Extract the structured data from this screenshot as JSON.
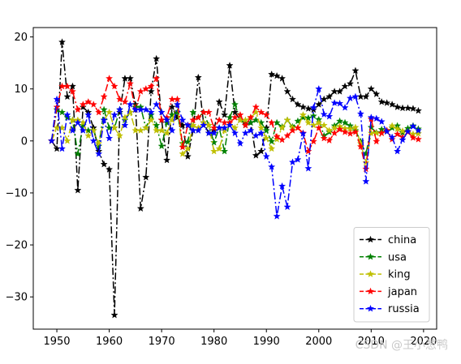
{
  "chart_data": {
    "type": "line",
    "xlim": [
      1945.5,
      2022.5
    ],
    "ylim": [
      -36.2,
      21.8
    ],
    "xticks": [
      1950,
      1960,
      1970,
      1980,
      1990,
      2000,
      2010,
      2020
    ],
    "yticks": [
      -30,
      -20,
      -10,
      0,
      10,
      20
    ],
    "legend_position": "lower-right",
    "x": [
      1949,
      1950,
      1951,
      1952,
      1953,
      1954,
      1955,
      1956,
      1957,
      1958,
      1959,
      1960,
      1961,
      1962,
      1963,
      1964,
      1965,
      1966,
      1967,
      1968,
      1969,
      1970,
      1971,
      1972,
      1973,
      1974,
      1975,
      1976,
      1977,
      1978,
      1979,
      1980,
      1981,
      1982,
      1983,
      1984,
      1985,
      1986,
      1987,
      1988,
      1989,
      1990,
      1991,
      1992,
      1993,
      1994,
      1995,
      1996,
      1997,
      1998,
      1999,
      2000,
      2001,
      2002,
      2003,
      2004,
      2005,
      2006,
      2007,
      2008,
      2009,
      2010,
      2011,
      2012,
      2013,
      2014,
      2015,
      2016,
      2017,
      2018,
      2019
    ],
    "series": [
      {
        "name": "china",
        "color": "#000000",
        "values": [
          0,
          -1.5,
          19,
          8.5,
          10.5,
          -9.5,
          6.5,
          5.5,
          2.5,
          -2,
          -4.5,
          -5.5,
          -33.5,
          5.5,
          12,
          12,
          7,
          -13,
          -7,
          9.5,
          15.8,
          4,
          -3.7,
          6.5,
          4.5,
          3,
          -3,
          2,
          12.2,
          3.5,
          1.5,
          2,
          7.5,
          5,
          14.5,
          5.5,
          4,
          3,
          3.5,
          -2.8,
          -2,
          2.5,
          12.8,
          12.5,
          12,
          9.5,
          8,
          7,
          6.5,
          6.2,
          6,
          7,
          8,
          8.5,
          9.5,
          9.5,
          10.5,
          11,
          13.5,
          8.5,
          8.5,
          10,
          9,
          7.5,
          7.3,
          7,
          6.5,
          6.3,
          6.3,
          6.2,
          5.8
        ]
      },
      {
        "name": "usa",
        "color": "#008000",
        "values": [
          0,
          6,
          5.5,
          4.5,
          4,
          -2.5,
          3,
          2,
          2,
          -1,
          6,
          2.5,
          2.5,
          6,
          4,
          5.5,
          6.5,
          6.5,
          2.5,
          5,
          3,
          -1,
          3.5,
          5,
          5.5,
          -0.5,
          -0.2,
          5.5,
          4.5,
          5.5,
          3,
          -0.3,
          2.5,
          -2,
          4.5,
          7,
          4,
          3.5,
          3.5,
          4,
          3.5,
          2,
          -0.1,
          3.5,
          2.7,
          4,
          2.7,
          3.8,
          4.5,
          4.4,
          4.8,
          4.1,
          1,
          1.7,
          2.9,
          3.8,
          3.5,
          2.9,
          2,
          -0.1,
          -2.5,
          2.6,
          1.6,
          2.2,
          1.8,
          2.5,
          2.9,
          1.6,
          2.4,
          2.9,
          2.3
        ]
      },
      {
        "name": "king",
        "color": "#bfbf00",
        "values": [
          0,
          2.5,
          2.5,
          0,
          4,
          4,
          3.5,
          1,
          2,
          -0.5,
          4,
          5.5,
          2.5,
          1,
          4.5,
          5.5,
          2,
          2,
          2.5,
          4,
          2,
          2,
          1.5,
          4,
          7,
          -2.5,
          -1.5,
          3,
          2.5,
          3.5,
          3,
          -2,
          -1.5,
          2,
          3.5,
          2.5,
          4,
          4,
          4.5,
          5.5,
          2.5,
          0.5,
          -1.5,
          0.3,
          2.5,
          4,
          2.5,
          2.5,
          5,
          3.5,
          3,
          3.5,
          3,
          2,
          2.5,
          2.8,
          2.4,
          2.3,
          2.6,
          -0.5,
          -4.2,
          1.5,
          1.5,
          1.5,
          2,
          2.9,
          2.3,
          1.9,
          1.8,
          1.3,
          1.4
        ]
      },
      {
        "name": "japan",
        "color": "#ff0000",
        "values": [
          0,
          6.5,
          10.5,
          10.5,
          9.5,
          6,
          7,
          7.5,
          7,
          5.5,
          8.5,
          12,
          10.5,
          8,
          7.5,
          11,
          6,
          9.5,
          10,
          10.5,
          12,
          4,
          4.5,
          8,
          8,
          -1.2,
          3,
          4,
          4.5,
          5.5,
          5.5,
          2.5,
          4,
          3.5,
          3.5,
          4.5,
          5,
          3,
          4.5,
          6.5,
          5.5,
          5,
          3.5,
          0.8,
          0.2,
          1,
          2,
          2.5,
          1.5,
          -2,
          -0.1,
          2.5,
          0.5,
          0.1,
          1.5,
          2.2,
          1.7,
          1.4,
          1.7,
          -1.1,
          -5.4,
          4.2,
          -0.1,
          1.5,
          2,
          0.3,
          1.3,
          0.7,
          1.7,
          0.6,
          0.3
        ]
      },
      {
        "name": "russia",
        "color": "#0000ff",
        "values": [
          0,
          8,
          -1.5,
          5,
          2,
          3.5,
          2,
          5,
          0,
          -2.5,
          4,
          0.5,
          5,
          6,
          3,
          7,
          6,
          6,
          6,
          5.5,
          7,
          5.5,
          4,
          2,
          7,
          4,
          3,
          2,
          2,
          3,
          1.5,
          1.5,
          2.5,
          2.5,
          3,
          1.5,
          -0.5,
          1.5,
          2,
          1,
          1.5,
          -3,
          -5,
          -14.5,
          -8.7,
          -12.7,
          -4.1,
          -3.6,
          1.4,
          -5.3,
          6.4,
          10,
          5.1,
          4.7,
          7.3,
          7.2,
          6.4,
          8.2,
          8.5,
          5.2,
          -7.8,
          4.5,
          4.3,
          3.7,
          1.8,
          0.7,
          -2,
          0.2,
          1.8,
          2.8,
          2
        ]
      }
    ]
  },
  "watermark": "CSDN @王小葱鸭"
}
